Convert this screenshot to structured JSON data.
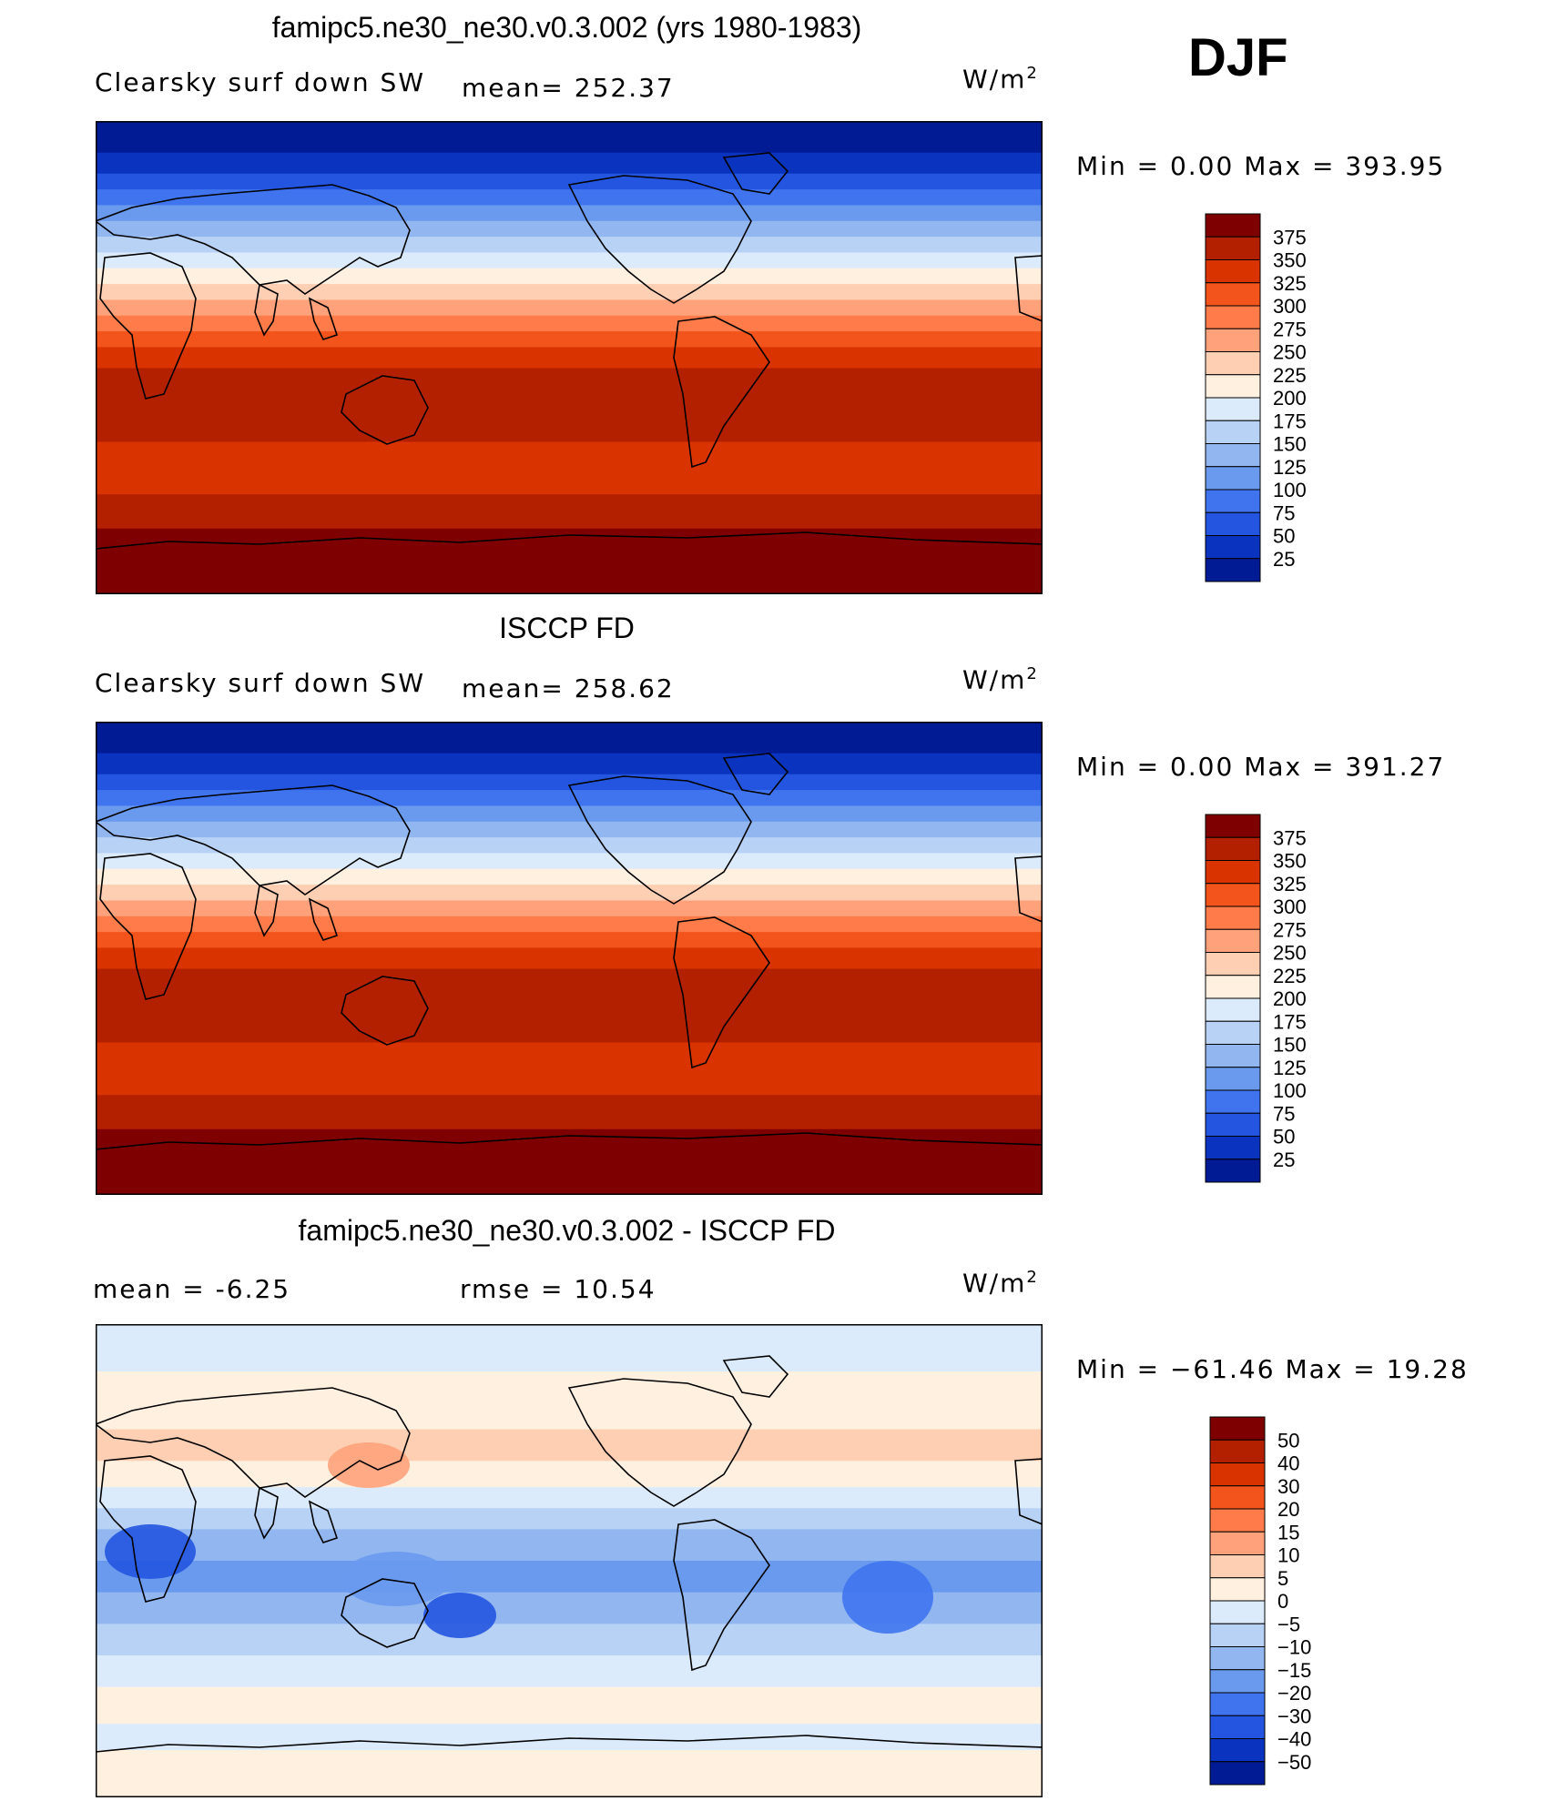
{
  "season": "DJF",
  "chart_data": [
    {
      "type": "heatmap",
      "title": "famipc5.ne30_ne30.v0.3.002 (yrs 1980-1983)",
      "left_label": "Clearsky surf down SW",
      "stat_text": "mean= 252.37",
      "unit": "W/m",
      "unit_exp": "2",
      "minmax_text": "Min =    0.00 Max = 393.95",
      "levels": [
        "375",
        "350",
        "325",
        "300",
        "275",
        "250",
        "225",
        "200",
        "175",
        "150",
        "125",
        "100",
        "75",
        "50",
        "25"
      ],
      "colors": [
        "#7f0000",
        "#b32000",
        "#d93300",
        "#f2541b",
        "#ff7c4a",
        "#ffa27b",
        "#ffcfb3",
        "#fff0e0",
        "#dcebfb",
        "#b8d2f6",
        "#91b6f0",
        "#6a9aee",
        "#3f74ee",
        "#2355e0",
        "#0a34c0",
        "#001b94"
      ]
    },
    {
      "type": "heatmap",
      "title": "ISCCP FD",
      "left_label": "Clearsky surf down SW",
      "stat_text": "mean= 258.62",
      "unit": "W/m",
      "unit_exp": "2",
      "minmax_text": "Min =    0.00 Max = 391.27",
      "levels": [
        "375",
        "350",
        "325",
        "300",
        "275",
        "250",
        "225",
        "200",
        "175",
        "150",
        "125",
        "100",
        "75",
        "50",
        "25"
      ],
      "colors": [
        "#7f0000",
        "#b32000",
        "#d93300",
        "#f2541b",
        "#ff7c4a",
        "#ffa27b",
        "#ffcfb3",
        "#fff0e0",
        "#dcebfb",
        "#b8d2f6",
        "#91b6f0",
        "#6a9aee",
        "#3f74ee",
        "#2355e0",
        "#0a34c0",
        "#001b94"
      ]
    },
    {
      "type": "heatmap",
      "title": "famipc5.ne30_ne30.v0.3.002 - ISCCP FD",
      "left_label": "mean =   -6.25",
      "stat_text": "rmse =   10.54",
      "unit": "W/m",
      "unit_exp": "2",
      "minmax_text": "Min = −61.46 Max =  19.28",
      "levels": [
        "50",
        "40",
        "30",
        "20",
        "15",
        "10",
        "5",
        "0",
        "−5",
        "−10",
        "−15",
        "−20",
        "−30",
        "−40",
        "−50"
      ],
      "colors": [
        "#7f0000",
        "#b32000",
        "#d93300",
        "#f2541b",
        "#ff7c4a",
        "#ffa27b",
        "#ffcfb3",
        "#fff0e0",
        "#dcebfb",
        "#b8d2f6",
        "#91b6f0",
        "#6a9aee",
        "#3f74ee",
        "#2355e0",
        "#0a34c0",
        "#001b94"
      ]
    }
  ]
}
